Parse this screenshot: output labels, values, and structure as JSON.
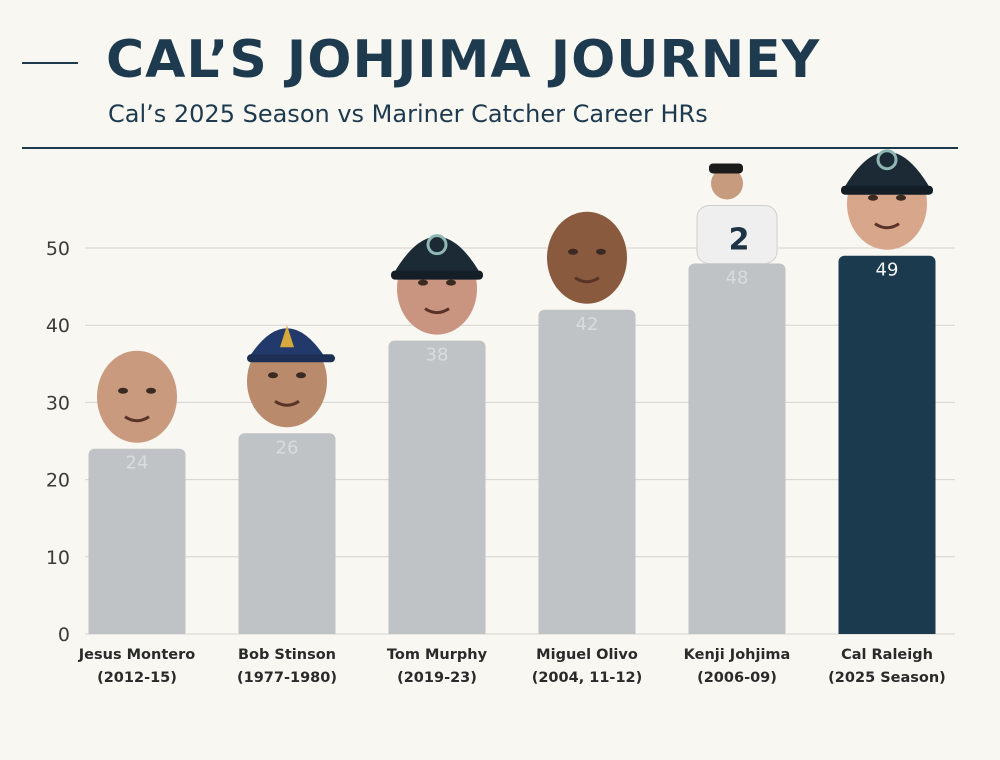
{
  "chart_data": {
    "type": "bar",
    "title": "CAL’S JOHJIMA JOURNEY",
    "subtitle": "Cal’s 2025 Season vs Mariner Catcher Career HRs",
    "xlabel": "",
    "ylabel": "",
    "ylim": [
      0,
      55
    ],
    "yticks": [
      0,
      10,
      20,
      30,
      40,
      50
    ],
    "grid": true,
    "categories": [
      [
        "Jesus Montero",
        "(2012-15)"
      ],
      [
        "Bob Stinson",
        "(1977-1980)"
      ],
      [
        "Tom Murphy",
        "(2019-23)"
      ],
      [
        "Miguel Olivo",
        "(2004, 11-12)"
      ],
      [
        "Kenji Johjima",
        "(2006-09)"
      ],
      [
        "Cal Raleigh",
        "(2025 Season)"
      ]
    ],
    "values": [
      24,
      26,
      38,
      42,
      48,
      49
    ],
    "colors": {
      "bar": "#bfc3c5",
      "highlight_bar": "#1c3a4e",
      "bar_label": "#d8dcde",
      "highlight_label": "#f3f5f6",
      "grid": "#d3d3cf"
    },
    "highlight_index": 5,
    "portraits": [
      "player-portrait",
      "player-portrait-cap",
      "player-portrait-helmet",
      "player-portrait",
      "player-jersey-2",
      "player-portrait-helmet"
    ]
  }
}
